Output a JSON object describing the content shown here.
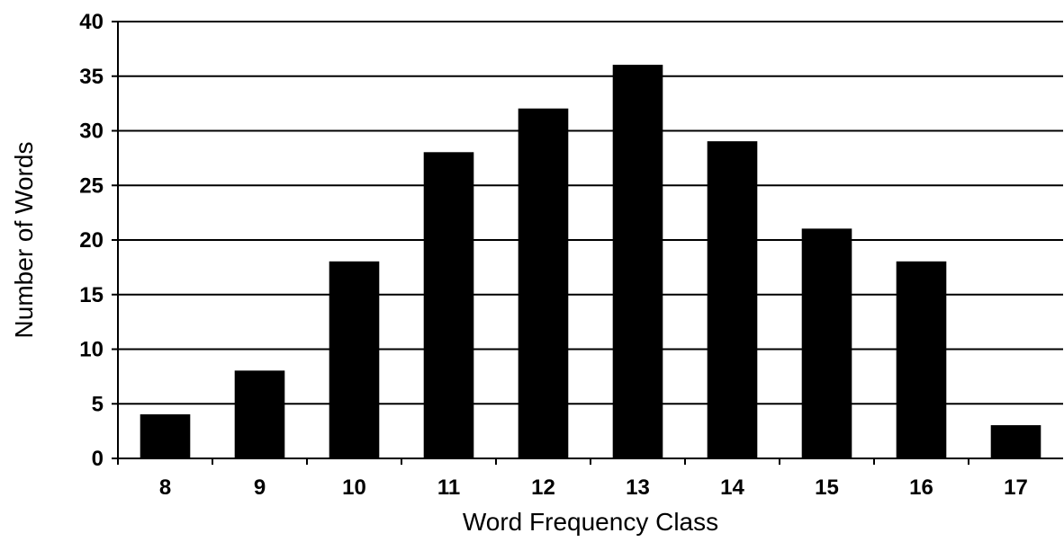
{
  "chart_data": {
    "type": "bar",
    "title": "",
    "xlabel": "Word Frequency Class",
    "ylabel": "Number of Words",
    "categories": [
      "8",
      "9",
      "10",
      "11",
      "12",
      "13",
      "14",
      "15",
      "16",
      "17"
    ],
    "values": [
      4,
      8,
      18,
      28,
      32,
      36,
      29,
      21,
      18,
      3
    ],
    "ylim": [
      0,
      40
    ],
    "yticks": [
      0,
      5,
      10,
      15,
      20,
      25,
      30,
      35,
      40
    ],
    "grid": true,
    "legend": "none",
    "colors": {
      "bar": "#000000",
      "grid": "#000000",
      "background": "#ffffff"
    }
  }
}
